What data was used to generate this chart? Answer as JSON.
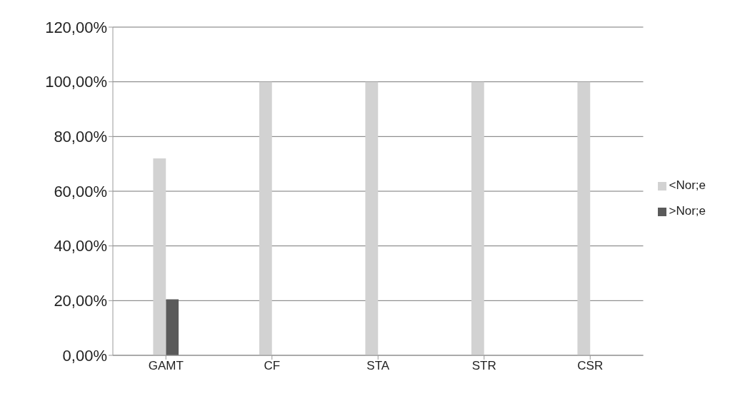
{
  "chart_data": {
    "type": "bar",
    "categories": [
      "GAMT",
      "CF",
      "STA",
      "STR",
      "CSR"
    ],
    "series": [
      {
        "name": ">Nor;e",
        "color": "#5a5a5a",
        "values": [
          20.5,
          0,
          0,
          0,
          0
        ]
      },
      {
        "name": "<Nor;e",
        "color": "#d2d2d2",
        "values": [
          72,
          100,
          100,
          100,
          100
        ]
      }
    ],
    "ylim": [
      0,
      120
    ],
    "yticks": [
      {
        "value": 0,
        "label": "0,00%"
      },
      {
        "value": 20,
        "label": "20,00%"
      },
      {
        "value": 40,
        "label": "40,00%"
      },
      {
        "value": 60,
        "label": "60,00%"
      },
      {
        "value": 80,
        "label": "80,00%"
      },
      {
        "value": 100,
        "label": "100,00%"
      },
      {
        "value": 120,
        "label": "120,00%"
      }
    ],
    "grid": "y",
    "legend": "right"
  }
}
